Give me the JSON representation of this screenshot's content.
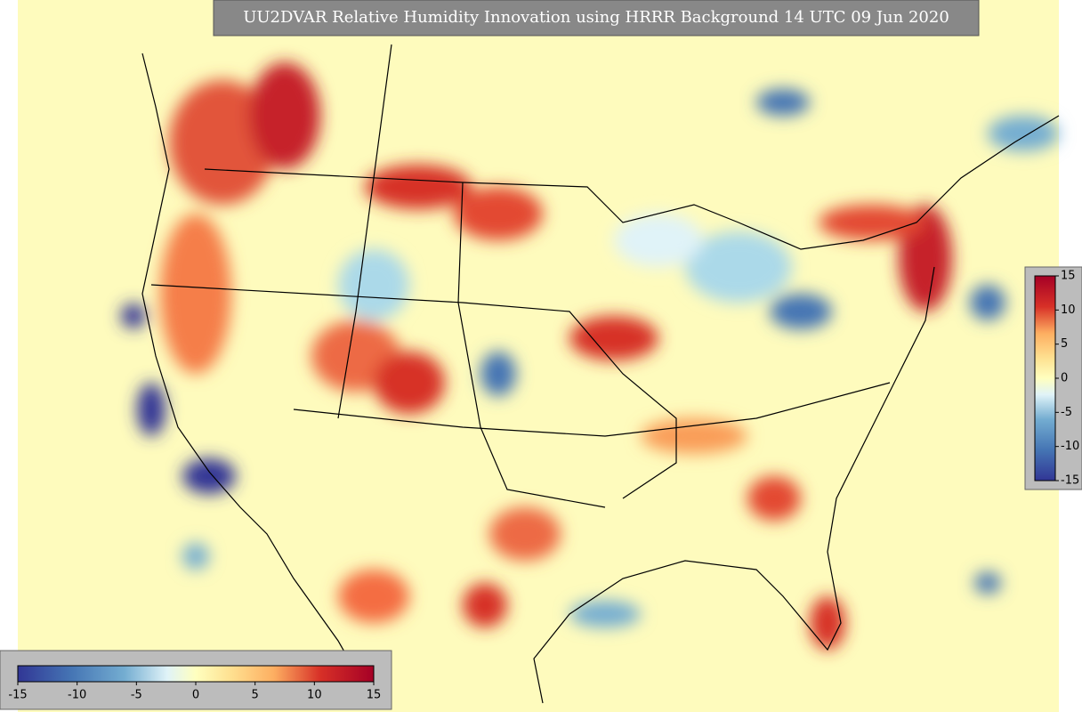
{
  "title": "UU2DVAR Relative Humidity Innovation using HRRR Background 14 UTC 09 Jun 2020",
  "colorbar_right": {
    "range": [
      -15,
      15
    ],
    "ticks": [
      15,
      10,
      5,
      0,
      -5,
      -10,
      -15
    ]
  },
  "colorbar_bottom": {
    "range": [
      -15,
      15
    ],
    "ticks": [
      -15,
      -10,
      -5,
      0,
      5,
      10,
      15
    ]
  }
}
